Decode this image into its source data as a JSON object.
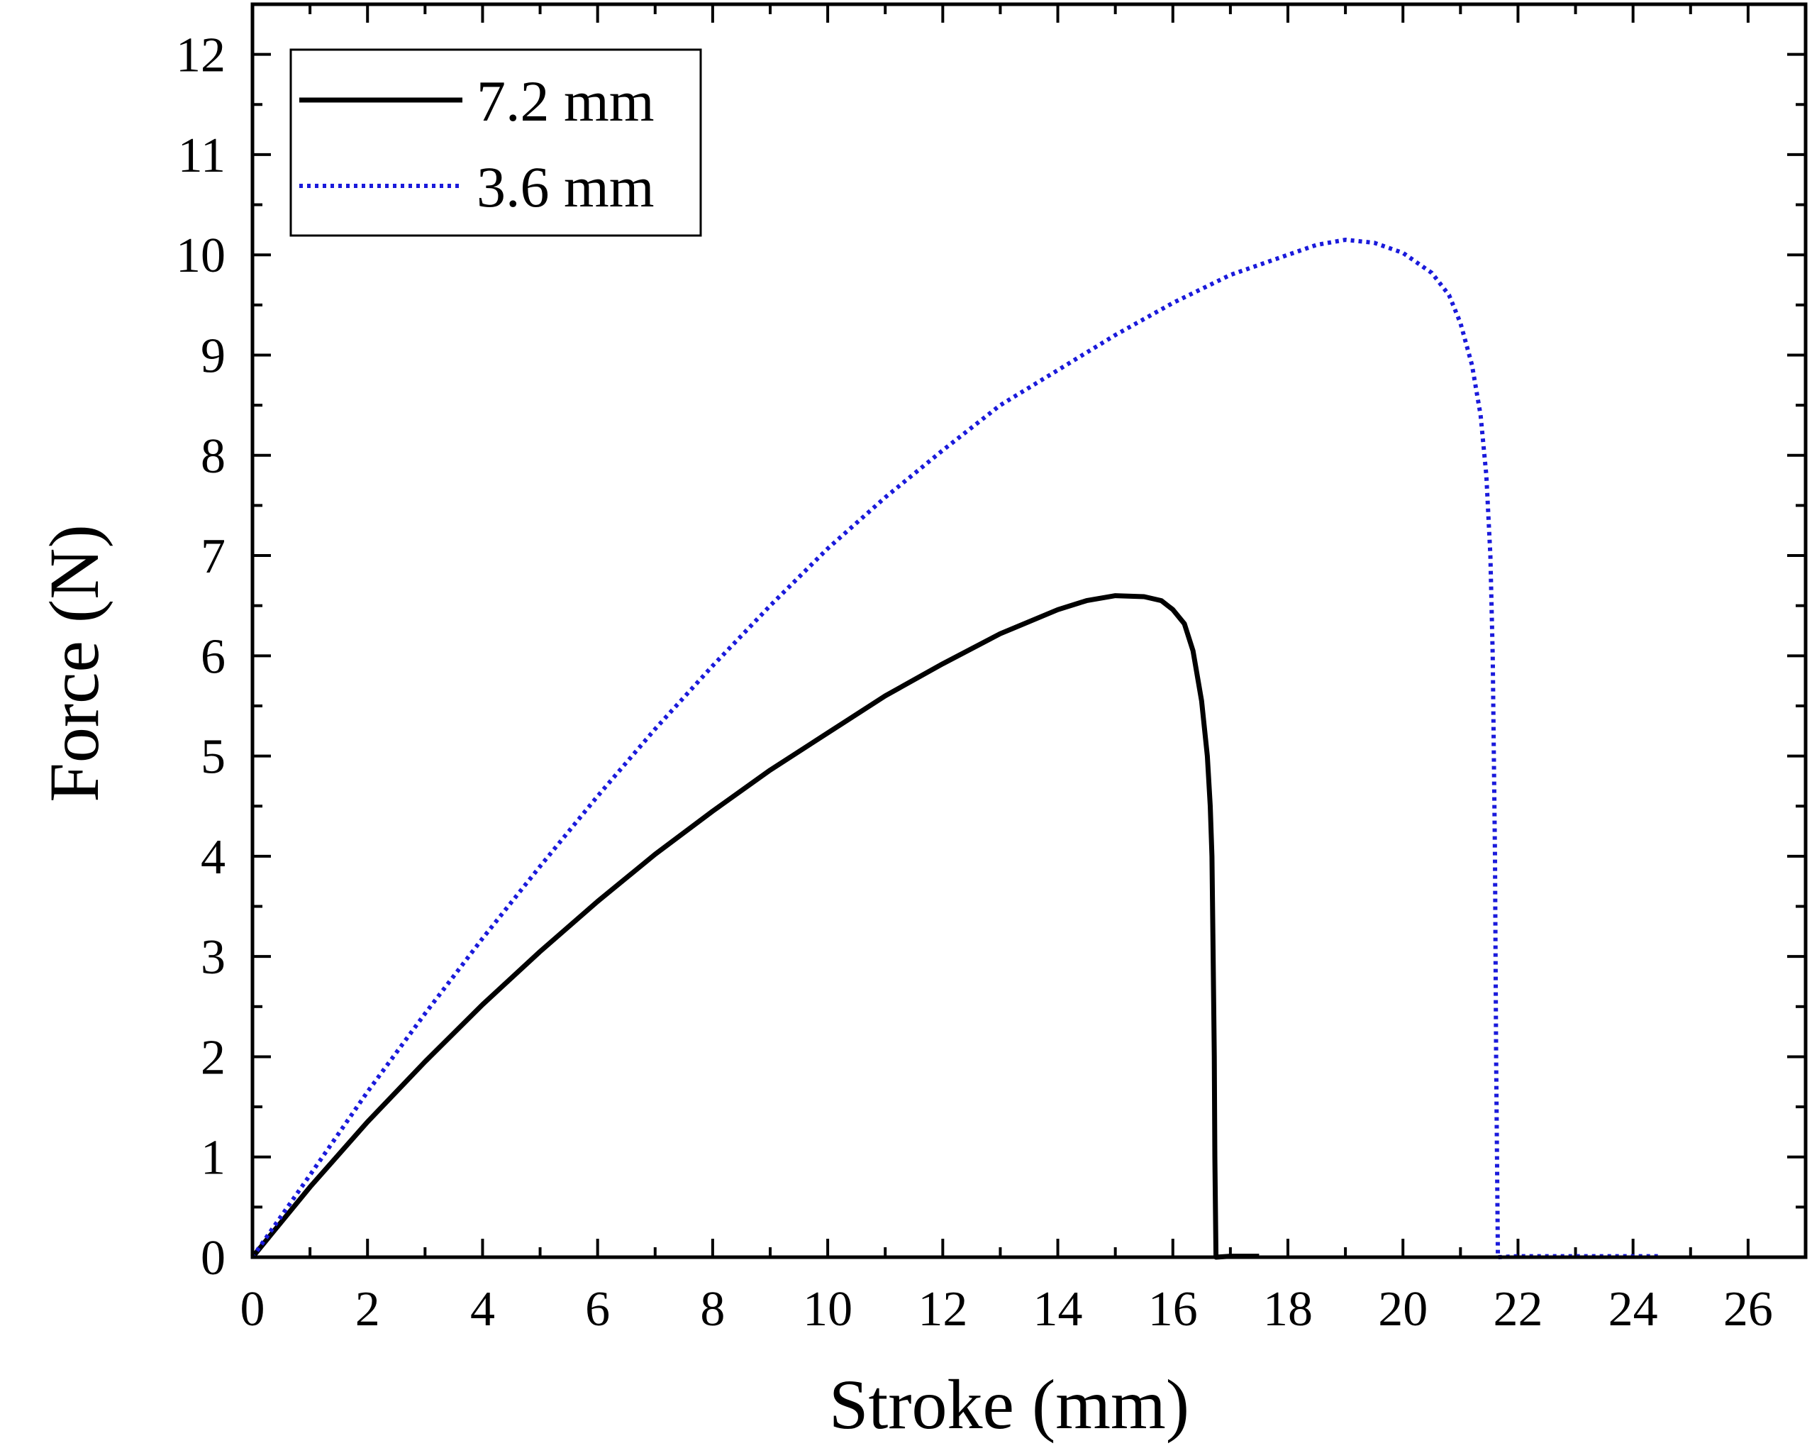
{
  "chart_data": {
    "type": "line",
    "title": "",
    "xlabel": "Stroke (mm)",
    "ylabel": "Force (N)",
    "xlim": [
      0,
      27
    ],
    "ylim": [
      0,
      12.5
    ],
    "x_ticks": [
      "0",
      "2",
      "4",
      "6",
      "8",
      "10",
      "12",
      "14",
      "16",
      "18",
      "20",
      "22",
      "24",
      "26"
    ],
    "y_ticks": [
      "0",
      "1",
      "2",
      "3",
      "4",
      "5",
      "6",
      "7",
      "8",
      "9",
      "10",
      "11",
      "12"
    ],
    "grid": false,
    "legend_position": "top-left",
    "series": [
      {
        "name": "7.2 mm",
        "color": "#000000",
        "style": "solid",
        "points": [
          [
            0,
            0
          ],
          [
            1,
            0.7
          ],
          [
            2,
            1.35
          ],
          [
            3,
            1.95
          ],
          [
            4,
            2.52
          ],
          [
            5,
            3.05
          ],
          [
            6,
            3.55
          ],
          [
            7,
            4.02
          ],
          [
            8,
            4.45
          ],
          [
            9,
            4.86
          ],
          [
            10,
            5.23
          ],
          [
            11,
            5.6
          ],
          [
            12,
            5.92
          ],
          [
            13,
            6.22
          ],
          [
            14,
            6.46
          ],
          [
            14.5,
            6.55
          ],
          [
            15,
            6.6
          ],
          [
            15.5,
            6.59
          ],
          [
            15.8,
            6.55
          ],
          [
            16.0,
            6.46
          ],
          [
            16.2,
            6.32
          ],
          [
            16.35,
            6.05
          ],
          [
            16.5,
            5.55
          ],
          [
            16.6,
            5.0
          ],
          [
            16.65,
            4.5
          ],
          [
            16.68,
            4.0
          ],
          [
            16.7,
            3.0
          ],
          [
            16.72,
            2.0
          ],
          [
            16.73,
            1.0
          ],
          [
            16.75,
            0.0
          ],
          [
            17.0,
            0.01
          ],
          [
            17.5,
            0.01
          ]
        ]
      },
      {
        "name": "3.6 mm",
        "color": "#1a1adb",
        "style": "dotted",
        "points": [
          [
            0,
            0
          ],
          [
            1,
            0.82
          ],
          [
            2,
            1.65
          ],
          [
            3,
            2.43
          ],
          [
            4,
            3.18
          ],
          [
            5,
            3.9
          ],
          [
            6,
            4.6
          ],
          [
            7,
            5.27
          ],
          [
            8,
            5.9
          ],
          [
            9,
            6.5
          ],
          [
            10,
            7.07
          ],
          [
            11,
            7.58
          ],
          [
            12,
            8.05
          ],
          [
            13,
            8.5
          ],
          [
            14,
            8.85
          ],
          [
            15,
            9.2
          ],
          [
            16,
            9.52
          ],
          [
            17,
            9.8
          ],
          [
            18,
            10.0
          ],
          [
            18.5,
            10.1
          ],
          [
            19,
            10.15
          ],
          [
            19.5,
            10.12
          ],
          [
            20,
            10.02
          ],
          [
            20.5,
            9.82
          ],
          [
            20.8,
            9.6
          ],
          [
            21.0,
            9.32
          ],
          [
            21.2,
            8.9
          ],
          [
            21.35,
            8.4
          ],
          [
            21.45,
            7.8
          ],
          [
            21.52,
            7.0
          ],
          [
            21.56,
            6.0
          ],
          [
            21.6,
            4.0
          ],
          [
            21.62,
            2.0
          ],
          [
            21.65,
            0.0
          ],
          [
            22,
            0.01
          ],
          [
            23,
            0.01
          ],
          [
            24,
            0.01
          ],
          [
            24.5,
            0.01
          ]
        ]
      }
    ]
  }
}
